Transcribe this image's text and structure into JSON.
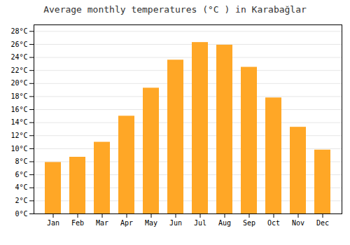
{
  "chart_data": {
    "type": "bar",
    "title": "Average monthly temperatures (°C ) in Karabağlar",
    "categories": [
      "Jan",
      "Feb",
      "Mar",
      "Apr",
      "May",
      "Jun",
      "Jul",
      "Aug",
      "Sep",
      "Oct",
      "Nov",
      "Dec"
    ],
    "values": [
      7.9,
      8.7,
      11.0,
      15.0,
      19.3,
      23.6,
      26.3,
      25.9,
      22.5,
      17.8,
      13.3,
      9.8
    ],
    "color": "#FFA726",
    "ylim": [
      0,
      29
    ],
    "yticks": [
      {
        "value": 0,
        "label": "0°C"
      },
      {
        "value": 2,
        "label": "2°C"
      },
      {
        "value": 4,
        "label": "4°C"
      },
      {
        "value": 6,
        "label": "6°C"
      },
      {
        "value": 8,
        "label": "8°C"
      },
      {
        "value": 10,
        "label": "10°C"
      },
      {
        "value": 12,
        "label": "12°C"
      },
      {
        "value": 14,
        "label": "14°C"
      },
      {
        "value": 16,
        "label": "16°C"
      },
      {
        "value": 18,
        "label": "18°C"
      },
      {
        "value": 20,
        "label": "20°C"
      },
      {
        "value": 22,
        "label": "22°C"
      },
      {
        "value": 24,
        "label": "24°C"
      },
      {
        "value": 26,
        "label": "26°C"
      },
      {
        "value": 28,
        "label": "28°C"
      }
    ],
    "grid": true
  }
}
